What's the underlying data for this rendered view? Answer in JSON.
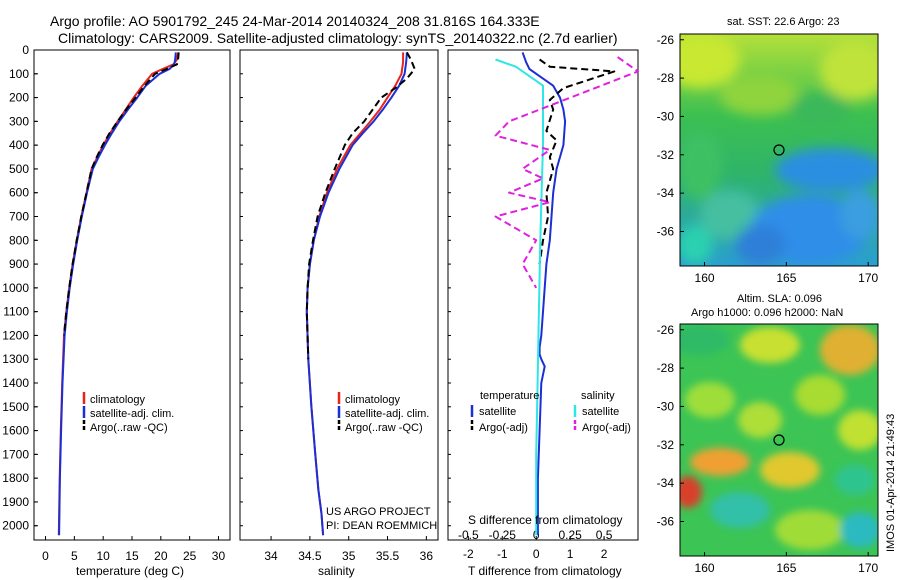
{
  "header": {
    "line1": "Argo profile: AO 5901792_245 24-Mar-2014 20140324_208 31.816S 164.333E",
    "line2": "Climatology: CARS2009. Satellite-adjusted climatology: synTS_20140322.nc (2.7d earlier)"
  },
  "colors": {
    "climatology": "#e8241c",
    "satellite": "#1a2fd6",
    "argo": "#000000",
    "sal_satellite": "#2ee6e6",
    "sal_argo": "#e020e0"
  },
  "depth_ticks": [
    "0",
    "100",
    "200",
    "300",
    "400",
    "500",
    "600",
    "700",
    "800",
    "900",
    "1000",
    "1100",
    "1200",
    "1300",
    "1400",
    "1500",
    "1600",
    "1700",
    "1800",
    "1900",
    "2000"
  ],
  "chart_data": [
    {
      "type": "line",
      "id": "temperature",
      "xlabel": "temperature (deg C)",
      "xlim": [
        -2,
        32
      ],
      "ylim": [
        2060,
        0
      ],
      "x_ticks": [
        "0",
        "5",
        "10",
        "15",
        "20",
        "25",
        "30"
      ],
      "y_inverted": true,
      "legend": [
        "climatology",
        "satellite-adj. clim.",
        "Argo(..raw -QC)"
      ],
      "series": [
        {
          "name": "climatology",
          "color": "climatology",
          "style": "solid",
          "x": [
            23.0,
            22.8,
            22.2,
            20.3,
            18.5,
            16.8,
            15.3,
            13.9,
            12.5,
            11.2,
            10.0,
            9.0,
            8.0,
            7.1,
            6.2,
            5.4,
            4.7,
            4.1,
            3.6,
            3.2,
            2.9,
            2.65,
            2.45,
            2.3
          ],
          "y": [
            10,
            40,
            60,
            80,
            100,
            150,
            200,
            250,
            300,
            350,
            400,
            450,
            500,
            600,
            700,
            800,
            900,
            1000,
            1100,
            1200,
            1400,
            1600,
            1800,
            2040
          ]
        },
        {
          "name": "satellite-adj. clim.",
          "color": "satellite",
          "style": "solid",
          "x": [
            22.6,
            22.5,
            22.3,
            21.5,
            19.8,
            17.4,
            15.9,
            14.3,
            12.8,
            11.5,
            10.3,
            9.2,
            8.2,
            7.2,
            6.3,
            5.5,
            4.8,
            4.2,
            3.7,
            3.3,
            2.95,
            2.7,
            2.5,
            2.35
          ],
          "y": [
            10,
            40,
            60,
            80,
            100,
            150,
            200,
            250,
            300,
            350,
            400,
            450,
            500,
            600,
            700,
            800,
            900,
            1000,
            1100,
            1200,
            1400,
            1600,
            1800,
            2040
          ]
        },
        {
          "name": "Argo(..raw -QC)",
          "color": "argo",
          "style": "dashed",
          "x": [
            23.1,
            23.0,
            22.8,
            21.0,
            19.0,
            17.2,
            15.6,
            14.0,
            12.5,
            11.1,
            9.9,
            8.9,
            8.0,
            7.1,
            6.2,
            5.4,
            4.7,
            4.1,
            3.6,
            3.2
          ],
          "y": [
            10,
            40,
            60,
            80,
            100,
            150,
            200,
            250,
            300,
            350,
            400,
            450,
            500,
            600,
            700,
            800,
            900,
            1000,
            1100,
            1200
          ]
        }
      ]
    },
    {
      "type": "line",
      "id": "salinity",
      "xlabel": "salinity",
      "xlim": [
        33.6,
        36.15
      ],
      "ylim": [
        2060,
        0
      ],
      "x_ticks": [
        "34",
        "34.5",
        "35",
        "35.5",
        "36"
      ],
      "y_inverted": true,
      "legend": [
        "climatology",
        "satellite-adj. clim.",
        "Argo(..raw -QC)"
      ],
      "annotation": [
        "US ARGO PROJECT",
        "PI: DEAN ROEMMICH"
      ],
      "series": [
        {
          "name": "climatology",
          "color": "climatology",
          "style": "solid",
          "x": [
            35.7,
            35.7,
            35.68,
            35.6,
            35.5,
            35.4,
            35.28,
            35.15,
            35.02,
            34.85,
            34.72,
            34.62,
            34.55,
            34.5,
            34.47,
            34.46,
            34.48,
            34.52,
            34.57,
            34.61,
            34.65,
            34.67
          ],
          "y": [
            10,
            50,
            100,
            150,
            200,
            250,
            300,
            350,
            400,
            500,
            600,
            700,
            800,
            900,
            1000,
            1100,
            1300,
            1500,
            1700,
            1850,
            1950,
            2040
          ]
        },
        {
          "name": "satellite-adj. clim.",
          "color": "satellite",
          "style": "solid",
          "x": [
            35.75,
            35.74,
            35.72,
            35.65,
            35.55,
            35.44,
            35.32,
            35.18,
            35.05,
            34.88,
            34.74,
            34.63,
            34.55,
            34.5,
            34.47,
            34.46,
            34.48,
            34.52,
            34.57,
            34.61,
            34.65,
            34.67
          ],
          "y": [
            10,
            50,
            100,
            150,
            200,
            250,
            300,
            350,
            400,
            500,
            600,
            700,
            800,
            900,
            1000,
            1100,
            1300,
            1500,
            1700,
            1850,
            1950,
            2040
          ]
        },
        {
          "name": "Argo(..raw -QC)",
          "color": "argo",
          "style": "dashed",
          "x": [
            35.75,
            35.8,
            35.85,
            35.75,
            35.6,
            35.42,
            35.2,
            35.05,
            34.95,
            34.82,
            34.7,
            34.6,
            34.54,
            34.49,
            34.47,
            34.46,
            34.48
          ],
          "y": [
            10,
            40,
            80,
            120,
            160,
            200,
            300,
            350,
            400,
            500,
            600,
            700,
            800,
            900,
            1000,
            1100,
            1300
          ]
        }
      ]
    },
    {
      "type": "line",
      "id": "difference",
      "xlabel": "T difference from climatology",
      "xlabel_top": "S difference from climatology",
      "xlim": [
        -2.6,
        3.0
      ],
      "ylim": [
        2060,
        0
      ],
      "x_ticks": [
        "-2",
        "-1",
        "0",
        "1",
        "2"
      ],
      "x_ticks_top": [
        "-0.5",
        "-0.25",
        "0",
        "0.25",
        "0.5"
      ],
      "legend_headers": [
        "temperature",
        "salinity"
      ],
      "legend": [
        "satellite",
        "Argo(-adj)",
        "satellite",
        "Argo(-adj)"
      ],
      "series": [
        {
          "name": "satellite",
          "group": "temperature",
          "color": "satellite",
          "style": "solid",
          "x": [
            -0.4,
            -0.3,
            -0.2,
            0.1,
            0.5,
            0.7,
            0.8,
            0.85,
            0.8,
            0.6,
            0.5,
            0.45,
            0.4,
            0.3,
            0.25,
            0.2,
            0.15,
            0.1,
            0.1,
            0.15,
            0.25,
            0.15,
            0.1,
            0.05,
            0.05
          ],
          "y": [
            10,
            50,
            80,
            110,
            150,
            200,
            250,
            300,
            400,
            500,
            600,
            700,
            800,
            900,
            1000,
            1100,
            1200,
            1250,
            1280,
            1300,
            1330,
            1400,
            1600,
            1800,
            2040
          ]
        },
        {
          "name": "Argo(-adj)",
          "group": "temperature",
          "color": "argo",
          "style": "dashed",
          "x": [
            0.1,
            0.4,
            2.3,
            0.8,
            0.4,
            0.5,
            0.3,
            0.6,
            0.4,
            0.5,
            0.3,
            0.35,
            0.2,
            0.1
          ],
          "y": [
            40,
            70,
            90,
            160,
            210,
            250,
            340,
            380,
            450,
            500,
            600,
            700,
            800,
            900
          ]
        },
        {
          "name": "satellite",
          "group": "salinity",
          "color": "sal_satellite",
          "style": "solid",
          "x": [
            -0.3,
            -0.15,
            0.05,
            0.05,
            0.05,
            0.04,
            0.03,
            0.02,
            0.01,
            0.0,
            0.0
          ],
          "y": [
            40,
            70,
            150,
            250,
            400,
            600,
            800,
            1100,
            1400,
            1700,
            2040
          ]
        },
        {
          "name": "Argo(-adj)",
          "group": "salinity",
          "color": "sal_argo",
          "style": "dashed",
          "x": [
            0.6,
            0.75,
            -0.2,
            -0.3,
            0.1,
            -0.1,
            0.05,
            -0.2,
            0.1,
            -0.3,
            0.0,
            -0.1,
            0.0
          ],
          "y": [
            30,
            90,
            300,
            360,
            420,
            500,
            540,
            600,
            640,
            700,
            800,
            900,
            1000
          ]
        }
      ]
    }
  ],
  "maps": [
    {
      "id": "sst",
      "title": "sat. SST: 22.6 Argo: 23",
      "x_ticks": [
        "160",
        "165",
        "170"
      ],
      "y_ticks": [
        "-26",
        "-28",
        "-30",
        "-32",
        "-34",
        "-36"
      ]
    },
    {
      "id": "sla",
      "title_line1": "Altim. SLA: 0.096",
      "title_line2": "Argo h1000: 0.096 h2000: NaN",
      "x_ticks": [
        "160",
        "165",
        "170"
      ],
      "y_ticks": [
        "-26",
        "-28",
        "-30",
        "-32",
        "-34",
        "-36"
      ]
    }
  ],
  "credit": "IMOS 01-Apr-2014 21:49:43"
}
